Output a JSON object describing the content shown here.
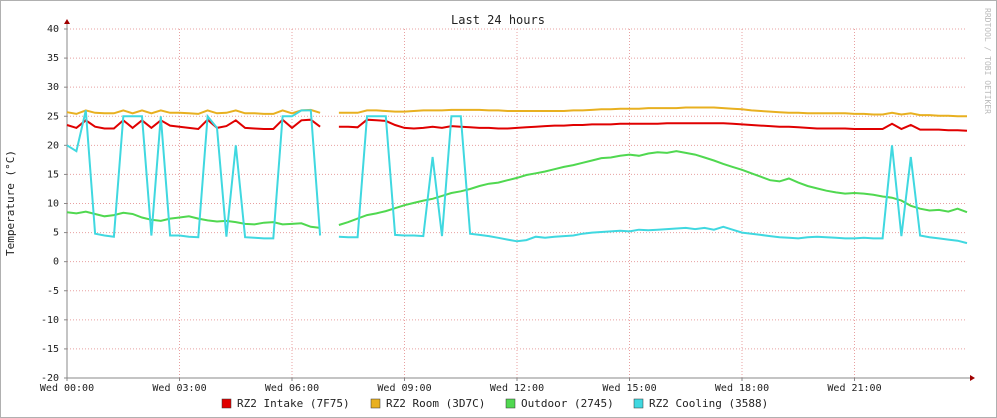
{
  "chart_data": {
    "type": "line",
    "title": "Last 24 hours",
    "y_label": "Temperature (°C)",
    "watermark": "RRDTOOL / TOBI OETIKER",
    "x": [
      0,
      0.25,
      0.5,
      0.75,
      1,
      1.25,
      1.5,
      1.75,
      2,
      2.25,
      2.5,
      2.75,
      3,
      3.25,
      3.5,
      3.75,
      4,
      4.25,
      4.5,
      4.75,
      5,
      5.25,
      5.5,
      5.75,
      6,
      6.25,
      6.5,
      6.75,
      7,
      7.25,
      7.5,
      7.75,
      8,
      8.25,
      8.5,
      8.75,
      9,
      9.25,
      9.5,
      9.75,
      10,
      10.25,
      10.5,
      10.75,
      11,
      11.25,
      11.5,
      11.75,
      12,
      12.25,
      12.5,
      12.75,
      13,
      13.25,
      13.5,
      13.75,
      14,
      14.25,
      14.5,
      14.75,
      15,
      15.25,
      15.5,
      15.75,
      16,
      16.25,
      16.5,
      16.75,
      17,
      17.25,
      17.5,
      17.75,
      18,
      18.25,
      18.5,
      18.75,
      19,
      19.25,
      19.5,
      19.75,
      20,
      20.25,
      20.5,
      20.75,
      21,
      21.25,
      21.5,
      21.75,
      22,
      22.25,
      22.5,
      22.75,
      23,
      23.25,
      23.5,
      23.75,
      24
    ],
    "xlim": [
      0,
      24.0
    ],
    "xticks": [
      {
        "value": 0,
        "label": "Wed 00:00"
      },
      {
        "value": 3,
        "label": "Wed 03:00"
      },
      {
        "value": 6,
        "label": "Wed 06:00"
      },
      {
        "value": 9,
        "label": "Wed 09:00"
      },
      {
        "value": 12,
        "label": "Wed 12:00"
      },
      {
        "value": 15,
        "label": "Wed 15:00"
      },
      {
        "value": 18,
        "label": "Wed 18:00"
      },
      {
        "value": 21,
        "label": "Wed 21:00"
      }
    ],
    "ylim": [
      -20,
      40
    ],
    "yticks": [
      -20,
      -15,
      -10,
      -5,
      0,
      5,
      10,
      15,
      20,
      25,
      30,
      35,
      40
    ],
    "grid": true,
    "legend": "bottom",
    "series": [
      {
        "name": "RZ2 Intake (7F75)",
        "color": "#e00000",
        "values": [
          23.5,
          23.0,
          24.3,
          23.2,
          22.9,
          22.9,
          24.3,
          23.0,
          24.3,
          23.0,
          24.3,
          23.4,
          23.2,
          23.0,
          22.8,
          24.4,
          23.0,
          23.3,
          24.3,
          23.0,
          22.9,
          22.8,
          22.8,
          24.4,
          23.0,
          24.3,
          24.4,
          23.2,
          null,
          23.2,
          23.2,
          23.1,
          24.4,
          24.3,
          24.2,
          23.5,
          23.0,
          22.9,
          23.0,
          23.2,
          23.0,
          23.3,
          23.2,
          23.1,
          23.0,
          23.0,
          22.9,
          22.9,
          23.0,
          23.1,
          23.2,
          23.3,
          23.4,
          23.4,
          23.5,
          23.5,
          23.6,
          23.6,
          23.6,
          23.7,
          23.7,
          23.7,
          23.7,
          23.7,
          23.8,
          23.8,
          23.8,
          23.8,
          23.8,
          23.8,
          23.8,
          23.7,
          23.6,
          23.5,
          23.4,
          23.3,
          23.2,
          23.2,
          23.1,
          23.0,
          22.9,
          22.9,
          22.9,
          22.9,
          22.8,
          22.8,
          22.8,
          22.8,
          23.7,
          22.8,
          23.5,
          22.7,
          22.7,
          22.7,
          22.6,
          22.6,
          22.5
        ]
      },
      {
        "name": "RZ2 Room (3D7C)",
        "color": "#e8b020",
        "values": [
          25.7,
          25.4,
          26.0,
          25.6,
          25.5,
          25.5,
          26.0,
          25.5,
          26.0,
          25.5,
          26.0,
          25.6,
          25.6,
          25.5,
          25.4,
          26.0,
          25.5,
          25.6,
          26.0,
          25.5,
          25.5,
          25.4,
          25.4,
          26.0,
          25.5,
          26.0,
          26.1,
          25.6,
          null,
          25.6,
          25.6,
          25.6,
          26.0,
          26.0,
          25.9,
          25.8,
          25.8,
          25.9,
          26.0,
          26.0,
          26.0,
          26.1,
          26.1,
          26.1,
          26.1,
          26.0,
          26.0,
          25.9,
          25.9,
          25.9,
          25.9,
          25.9,
          25.9,
          25.9,
          26.0,
          26.0,
          26.1,
          26.2,
          26.2,
          26.3,
          26.3,
          26.3,
          26.4,
          26.4,
          26.4,
          26.4,
          26.5,
          26.5,
          26.5,
          26.5,
          26.4,
          26.3,
          26.2,
          26.0,
          25.9,
          25.8,
          25.7,
          25.6,
          25.6,
          25.5,
          25.5,
          25.5,
          25.5,
          25.5,
          25.4,
          25.4,
          25.3,
          25.3,
          25.6,
          25.3,
          25.5,
          25.2,
          25.2,
          25.1,
          25.1,
          25.0,
          25.0
        ]
      },
      {
        "name": "Outdoor (2745)",
        "color": "#50d850",
        "values": [
          8.5,
          8.3,
          8.6,
          8.2,
          7.8,
          8.0,
          8.4,
          8.2,
          7.6,
          7.2,
          7.0,
          7.4,
          7.6,
          7.8,
          7.4,
          7.1,
          6.9,
          7.0,
          6.8,
          6.5,
          6.4,
          6.7,
          6.8,
          6.4,
          6.5,
          6.6,
          6.0,
          5.8,
          null,
          6.3,
          6.8,
          7.4,
          8.0,
          8.3,
          8.7,
          9.2,
          9.7,
          10.1,
          10.5,
          10.8,
          11.3,
          11.8,
          12.1,
          12.5,
          13.0,
          13.4,
          13.6,
          14.0,
          14.4,
          14.9,
          15.2,
          15.5,
          15.9,
          16.3,
          16.6,
          17.0,
          17.4,
          17.8,
          17.9,
          18.2,
          18.4,
          18.2,
          18.6,
          18.8,
          18.7,
          19.0,
          18.7,
          18.4,
          17.9,
          17.4,
          16.8,
          16.3,
          15.8,
          15.2,
          14.6,
          14.0,
          13.8,
          14.3,
          13.6,
          13.0,
          12.6,
          12.2,
          11.9,
          11.7,
          11.8,
          11.7,
          11.5,
          11.2,
          11.0,
          10.5,
          9.6,
          9.1,
          8.8,
          8.9,
          8.6,
          9.1,
          8.5
        ]
      },
      {
        "name": "RZ2 Cooling (3588)",
        "color": "#40d8e0",
        "values": [
          20,
          19,
          26,
          4.8,
          4.5,
          4.3,
          25,
          25,
          25,
          4.5,
          25,
          4.5,
          4.5,
          4.3,
          4.2,
          25,
          23,
          4.3,
          20,
          4.2,
          4.1,
          4.0,
          4.0,
          25,
          25,
          26,
          26,
          4.5,
          null,
          4.3,
          4.2,
          4.2,
          25,
          25,
          25,
          4.6,
          4.5,
          4.5,
          4.4,
          18,
          4.4,
          25,
          25,
          4.8,
          4.6,
          4.4,
          4.1,
          3.8,
          3.5,
          3.7,
          4.3,
          4.1,
          4.3,
          4.4,
          4.5,
          4.8,
          5.0,
          5.1,
          5.2,
          5.3,
          5.2,
          5.5,
          5.4,
          5.5,
          5.6,
          5.7,
          5.8,
          5.6,
          5.8,
          5.5,
          6.0,
          5.5,
          5.0,
          4.8,
          4.6,
          4.4,
          4.2,
          4.1,
          4.0,
          4.2,
          4.3,
          4.2,
          4.1,
          4.0,
          4.0,
          4.1,
          4.0,
          4.0,
          20,
          4.4,
          18,
          4.5,
          4.2,
          4.0,
          3.8,
          3.6,
          3.2
        ]
      }
    ]
  }
}
